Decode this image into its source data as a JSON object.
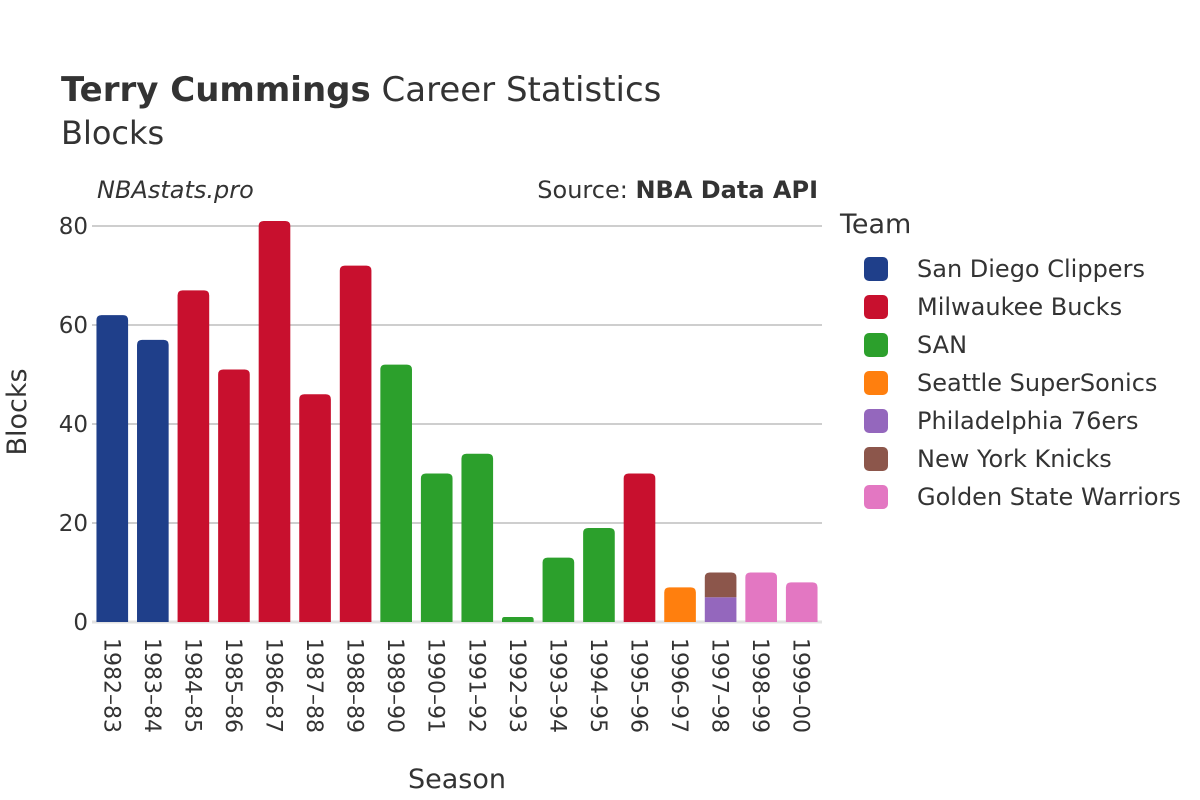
{
  "header": {
    "title_bold": "Terry Cummings",
    "title_rest": "Career Statistics",
    "subtitle": "Blocks",
    "watermark": "NBAstats.pro",
    "source_prefix": "Source: ",
    "source_name": "NBA Data API"
  },
  "legend": {
    "title": "Team",
    "items": [
      {
        "label": "San Diego Clippers",
        "color": "#1f3f8a"
      },
      {
        "label": "Milwaukee Bucks",
        "color": "#c8102e"
      },
      {
        "label": "SAN",
        "color": "#2ca02c"
      },
      {
        "label": "Seattle SuperSonics",
        "color": "#ff7f0e"
      },
      {
        "label": "Philadelphia 76ers",
        "color": "#9467bd"
      },
      {
        "label": "New York Knicks",
        "color": "#8c564b"
      },
      {
        "label": "Golden State Warriors",
        "color": "#e377c2"
      }
    ]
  },
  "chart_data": {
    "type": "bar",
    "stacked": true,
    "xlabel": "Season",
    "ylabel": "Blocks",
    "ylim": [
      0,
      80
    ],
    "yticks": [
      0,
      20,
      40,
      60,
      80
    ],
    "grid": true,
    "legend_position": "right",
    "categories": [
      "1982–83",
      "1983–84",
      "1984–85",
      "1985–86",
      "1986–87",
      "1987–88",
      "1988–89",
      "1989–90",
      "1990–91",
      "1991–92",
      "1992–93",
      "1993–94",
      "1994–95",
      "1995–96",
      "1996–97",
      "1997–98",
      "1998–99",
      "1999–00"
    ],
    "series": [
      {
        "name": "San Diego Clippers",
        "color": "#1f3f8a",
        "values": [
          62,
          57,
          0,
          0,
          0,
          0,
          0,
          0,
          0,
          0,
          0,
          0,
          0,
          0,
          0,
          0,
          0,
          0
        ]
      },
      {
        "name": "Milwaukee Bucks",
        "color": "#c8102e",
        "values": [
          0,
          0,
          67,
          51,
          81,
          46,
          72,
          0,
          0,
          0,
          0,
          0,
          0,
          30,
          0,
          0,
          0,
          0
        ]
      },
      {
        "name": "SAN",
        "color": "#2ca02c",
        "values": [
          0,
          0,
          0,
          0,
          0,
          0,
          0,
          52,
          30,
          34,
          1,
          13,
          19,
          0,
          0,
          0,
          0,
          0
        ]
      },
      {
        "name": "Seattle SuperSonics",
        "color": "#ff7f0e",
        "values": [
          0,
          0,
          0,
          0,
          0,
          0,
          0,
          0,
          0,
          0,
          0,
          0,
          0,
          0,
          7,
          0,
          0,
          0
        ]
      },
      {
        "name": "Philadelphia 76ers",
        "color": "#9467bd",
        "values": [
          0,
          0,
          0,
          0,
          0,
          0,
          0,
          0,
          0,
          0,
          0,
          0,
          0,
          0,
          0,
          5,
          0,
          0
        ]
      },
      {
        "name": "New York Knicks",
        "color": "#8c564b",
        "values": [
          0,
          0,
          0,
          0,
          0,
          0,
          0,
          0,
          0,
          0,
          0,
          0,
          0,
          0,
          0,
          5,
          0,
          0
        ]
      },
      {
        "name": "Golden State Warriors",
        "color": "#e377c2",
        "values": [
          0,
          0,
          0,
          0,
          0,
          0,
          0,
          0,
          0,
          0,
          0,
          0,
          0,
          0,
          0,
          0,
          10,
          8
        ]
      }
    ]
  }
}
